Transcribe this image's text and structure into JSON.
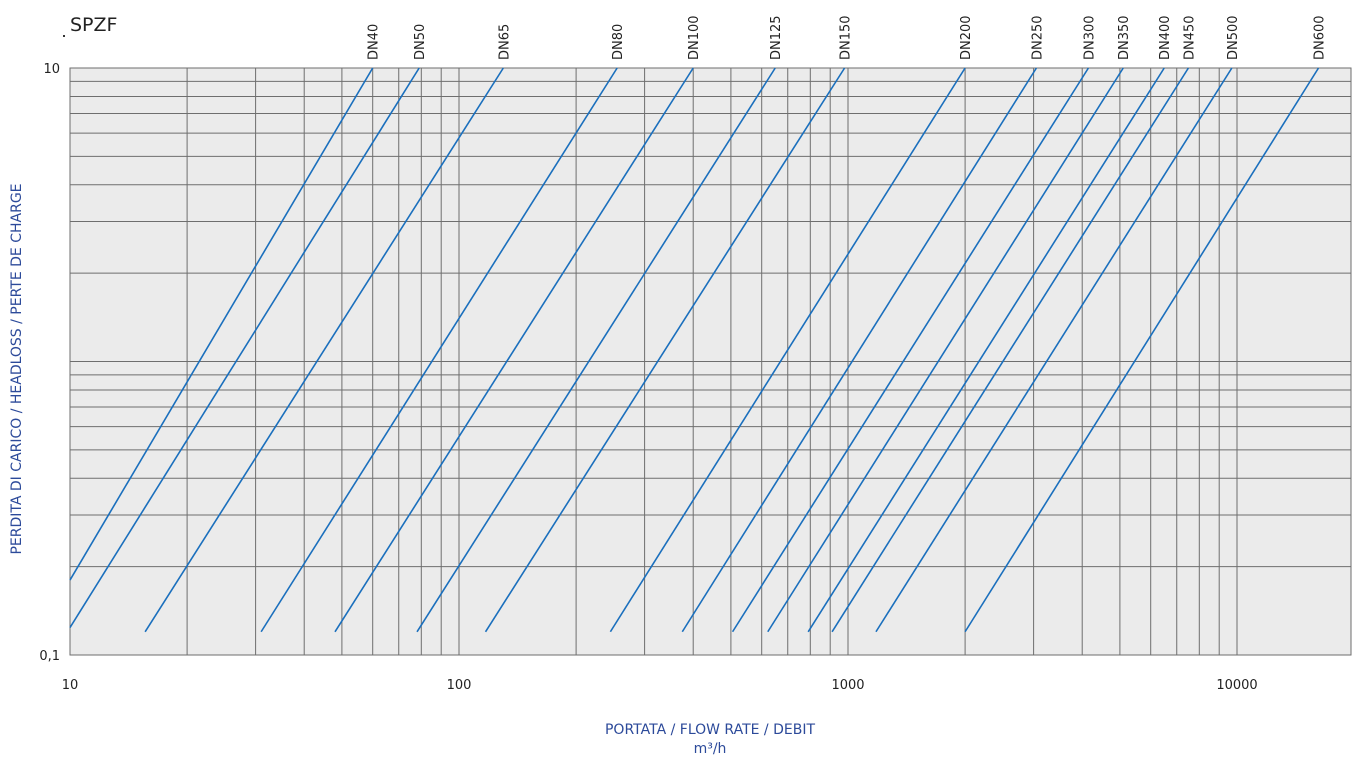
{
  "chart_data": {
    "type": "line",
    "title": "SPZF",
    "xlabel": "PORTATA / FLOW RATE / DEBIT",
    "xunit": "m³/h",
    "ylabel": "PERDITA DI CARICO / HEADLOSS / PERTE DE CHARGE",
    "x_scale": "log",
    "y_scale": "log",
    "xlim": [
      10,
      20000
    ],
    "ylim": [
      0.1,
      10
    ],
    "x_tick_labels": [
      {
        "value": 10,
        "label": "10"
      },
      {
        "value": 100,
        "label": "100"
      },
      {
        "value": 1000,
        "label": "1000"
      },
      {
        "value": 10000,
        "label": "10000"
      }
    ],
    "y_tick_labels": [
      {
        "value": 10,
        "label": "10"
      },
      {
        "value": 0.1,
        "label": "0,1"
      }
    ],
    "grid": true,
    "background": "#ebebeb",
    "line_color": "#1a6fbd",
    "grid_color": "#6e6e6e",
    "label_color": "#2c4a9a",
    "series": [
      {
        "name": "DN40",
        "x": [
          10,
          60
        ],
        "y": [
          0.18,
          10
        ]
      },
      {
        "name": "DN50",
        "x": [
          10,
          79
        ],
        "y": [
          0.124,
          10
        ]
      },
      {
        "name": "DN65",
        "x": [
          15.6,
          130
        ],
        "y": [
          0.12,
          10
        ]
      },
      {
        "name": "DN80",
        "x": [
          31,
          255
        ],
        "y": [
          0.12,
          10
        ]
      },
      {
        "name": "DN100",
        "x": [
          48,
          400
        ],
        "y": [
          0.12,
          10
        ]
      },
      {
        "name": "DN125",
        "x": [
          78,
          650
        ],
        "y": [
          0.12,
          10
        ]
      },
      {
        "name": "DN150",
        "x": [
          117,
          980
        ],
        "y": [
          0.12,
          10
        ]
      },
      {
        "name": "DN200",
        "x": [
          245,
          2000
        ],
        "y": [
          0.12,
          10
        ]
      },
      {
        "name": "DN250",
        "x": [
          375,
          3050
        ],
        "y": [
          0.12,
          10
        ]
      },
      {
        "name": "DN300",
        "x": [
          505,
          4150
        ],
        "y": [
          0.12,
          10
        ]
      },
      {
        "name": "DN350",
        "x": [
          622,
          5100
        ],
        "y": [
          0.12,
          10
        ]
      },
      {
        "name": "DN400",
        "x": [
          790,
          6500
        ],
        "y": [
          0.12,
          10
        ]
      },
      {
        "name": "DN450",
        "x": [
          910,
          7500
        ],
        "y": [
          0.12,
          10
        ]
      },
      {
        "name": "DN500",
        "x": [
          1180,
          9700
        ],
        "y": [
          0.12,
          10
        ]
      },
      {
        "name": "DN600",
        "x": [
          2000,
          16200
        ],
        "y": [
          0.12,
          10
        ]
      }
    ]
  }
}
